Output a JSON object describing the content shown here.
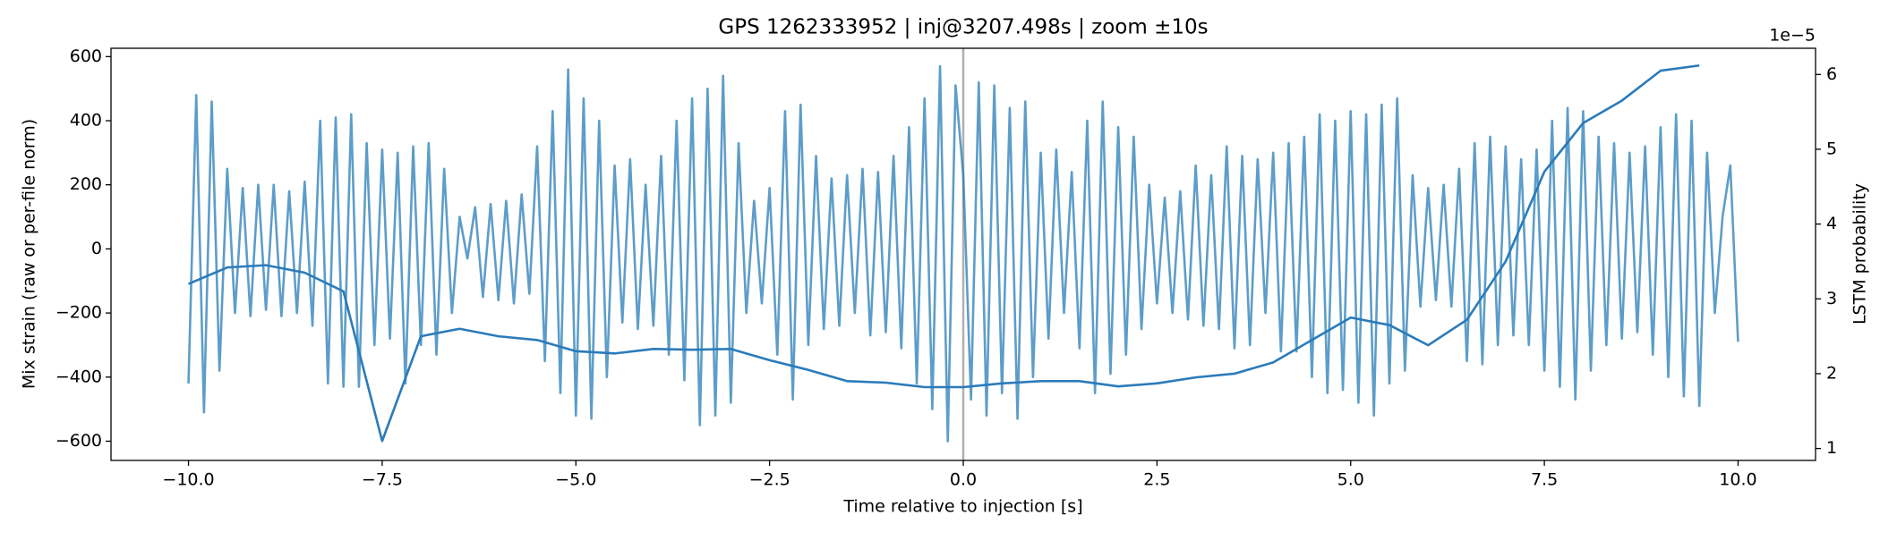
{
  "chart_data": {
    "type": "line",
    "title": "GPS 1262333952 | inj@3207.498s | zoom ±10s",
    "xlabel": "Time relative to injection [s]",
    "ylabel": "Mix strain (raw or per-file norm)",
    "y2label": "LSTM probability",
    "y2_offset_label": "1e−5",
    "xlim": [
      -11,
      11
    ],
    "ylim": [
      -660,
      626
    ],
    "y2lim": [
      0.84,
      6.35
    ],
    "xticks": [
      {
        "value": -10,
        "label": "−10.0"
      },
      {
        "value": -7.5,
        "label": "−7.5"
      },
      {
        "value": -5,
        "label": "−5.0"
      },
      {
        "value": -2.5,
        "label": "−2.5"
      },
      {
        "value": 0,
        "label": "0.0"
      },
      {
        "value": 2.5,
        "label": "2.5"
      },
      {
        "value": 5,
        "label": "5.0"
      },
      {
        "value": 7.5,
        "label": "7.5"
      },
      {
        "value": 10,
        "label": "10.0"
      }
    ],
    "yticks": [
      {
        "value": -600,
        "label": "−600"
      },
      {
        "value": -400,
        "label": "−400"
      },
      {
        "value": -200,
        "label": "−200"
      },
      0,
      200,
      400,
      600
    ],
    "y2ticks": [
      1,
      2,
      3,
      4,
      5,
      6
    ],
    "vline_x": 0,
    "vline_color": "#b0b0b0",
    "grid": false,
    "series": [
      {
        "color": "#1f77b4",
        "opacity": 0.72,
        "axis": "y",
        "x": [
          -10,
          -9.9,
          -9.8,
          -9.7,
          -9.6,
          -9.5,
          -9.4,
          -9.3,
          -9.2,
          -9.1,
          -9,
          -8.9,
          -8.8,
          -8.7,
          -8.6,
          -8.5,
          -8.4,
          -8.3,
          -8.2,
          -8.1,
          -8,
          -7.9,
          -7.8,
          -7.7,
          -7.6,
          -7.5,
          -7.4,
          -7.3,
          -7.2,
          -7.1,
          -7,
          -6.9,
          -6.8,
          -6.7,
          -6.6,
          -6.5,
          -6.4,
          -6.3,
          -6.2,
          -6.1,
          -6,
          -5.9,
          -5.8,
          -5.7,
          -5.6,
          -5.5,
          -5.4,
          -5.3,
          -5.2,
          -5.1,
          -5,
          -4.9,
          -4.8,
          -4.7,
          -4.6,
          -4.5,
          -4.4,
          -4.3,
          -4.2,
          -4.1,
          -4,
          -3.9,
          -3.8,
          -3.7,
          -3.6,
          -3.5,
          -3.4,
          -3.3,
          -3.2,
          -3.1,
          -3,
          -2.9,
          -2.8,
          -2.7,
          -2.6,
          -2.5,
          -2.4,
          -2.3,
          -2.2,
          -2.1,
          -2,
          -1.9,
          -1.8,
          -1.7,
          -1.6,
          -1.5,
          -1.4,
          -1.3,
          -1.2,
          -1.1,
          -1,
          -0.9,
          -0.8,
          -0.7,
          -0.6,
          -0.5,
          -0.4,
          -0.3,
          -0.2,
          -0.1,
          0,
          0.1,
          0.2,
          0.3,
          0.4,
          0.5,
          0.6,
          0.7,
          0.8,
          0.9,
          1,
          1.1,
          1.2,
          1.3,
          1.4,
          1.5,
          1.6,
          1.7,
          1.8,
          1.9,
          2,
          2.1,
          2.2,
          2.3,
          2.4,
          2.5,
          2.6,
          2.7,
          2.8,
          2.9,
          3,
          3.1,
          3.2,
          3.3,
          3.4,
          3.5,
          3.6,
          3.7,
          3.8,
          3.9,
          4,
          4.1,
          4.2,
          4.3,
          4.4,
          4.5,
          4.6,
          4.7,
          4.8,
          4.9,
          5,
          5.1,
          5.2,
          5.3,
          5.4,
          5.5,
          5.6,
          5.7,
          5.8,
          5.9,
          6,
          6.1,
          6.2,
          6.3,
          6.4,
          6.5,
          6.6,
          6.7,
          6.8,
          6.9,
          7,
          7.1,
          7.2,
          7.3,
          7.4,
          7.5,
          7.6,
          7.7,
          7.8,
          7.9,
          8,
          8.1,
          8.2,
          8.3,
          8.4,
          8.5,
          8.6,
          8.7,
          8.8,
          8.9,
          9,
          9.1,
          9.2,
          9.3,
          9.4,
          9.5,
          9.6,
          9.7,
          9.8,
          9.9,
          10
        ],
        "values": [
          -420,
          480,
          -510,
          460,
          -380,
          250,
          -200,
          190,
          -210,
          200,
          -190,
          200,
          -210,
          180,
          -200,
          210,
          -240,
          400,
          -420,
          410,
          -430,
          420,
          -430,
          330,
          -300,
          310,
          -280,
          300,
          -420,
          320,
          -300,
          330,
          -330,
          250,
          -200,
          100,
          -30,
          130,
          -150,
          140,
          -160,
          150,
          -170,
          170,
          -140,
          320,
          -350,
          430,
          -450,
          560,
          -520,
          470,
          -530,
          400,
          -400,
          260,
          -230,
          280,
          -250,
          200,
          -240,
          290,
          -330,
          400,
          -410,
          470,
          -550,
          500,
          -520,
          540,
          -480,
          330,
          -200,
          150,
          -170,
          190,
          -330,
          430,
          -470,
          450,
          -300,
          290,
          -250,
          220,
          -240,
          230,
          -200,
          250,
          -270,
          240,
          -260,
          290,
          -310,
          380,
          -420,
          470,
          -500,
          570,
          -600,
          510,
          230,
          -470,
          520,
          -520,
          510,
          -450,
          440,
          -530,
          460,
          -400,
          300,
          -280,
          310,
          -200,
          240,
          -310,
          400,
          -450,
          460,
          -390,
          380,
          -330,
          350,
          -250,
          200,
          -170,
          160,
          -200,
          180,
          -220,
          260,
          -240,
          230,
          -250,
          320,
          -310,
          290,
          -300,
          280,
          -200,
          300,
          -320,
          330,
          -320,
          350,
          -400,
          420,
          -450,
          400,
          -440,
          430,
          -480,
          420,
          -520,
          450,
          -420,
          470,
          -380,
          230,
          -180,
          190,
          -160,
          200,
          -180,
          250,
          -350,
          330,
          -360,
          350,
          -300,
          320,
          -270,
          280,
          -300,
          310,
          -380,
          400,
          -430,
          440,
          -470,
          430,
          -380,
          350,
          -300,
          330,
          -280,
          300,
          -260,
          320,
          -330,
          380,
          -400,
          420,
          -460,
          400,
          -490,
          300,
          -200,
          100,
          260,
          -290
        ]
      },
      {
        "color": "#2b7bba",
        "opacity": 1,
        "axis": "y2",
        "x": [
          -10,
          -9.5,
          -9,
          -8.5,
          -8,
          -7.5,
          -7,
          -6.5,
          -6,
          -5.5,
          -5,
          -4.5,
          -4,
          -3.5,
          -3,
          -2.5,
          -2,
          -1.5,
          -1,
          -0.5,
          0,
          0.5,
          1,
          1.5,
          2,
          2.5,
          3,
          3.5,
          4,
          4.5,
          5,
          5.5,
          6,
          6.5,
          7,
          7.5,
          8,
          8.5,
          9,
          9.5
        ],
        "values": [
          3.2,
          3.42,
          3.45,
          3.35,
          3.1,
          1.1,
          2.5,
          2.6,
          2.5,
          2.45,
          2.3,
          2.27,
          2.33,
          2.32,
          2.33,
          2.18,
          2.05,
          1.9,
          1.88,
          1.82,
          1.82,
          1.87,
          1.9,
          1.9,
          1.83,
          1.87,
          1.95,
          2.0,
          2.15,
          2.45,
          2.75,
          2.65,
          2.38,
          2.72,
          3.5,
          4.7,
          5.35,
          5.65,
          6.05,
          6.12
        ]
      }
    ]
  }
}
